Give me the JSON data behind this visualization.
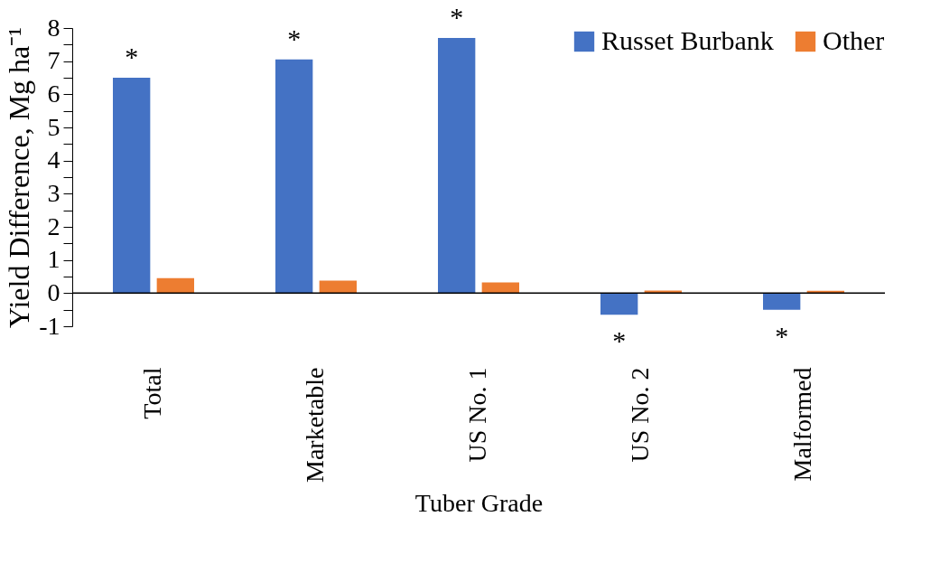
{
  "chart_data": {
    "type": "bar",
    "xlabel": "Tuber Grade",
    "ylabel": "Yield Difference, Mg ha⁻¹",
    "categories": [
      "Total",
      "Marketable",
      "US No. 1",
      "US No. 2",
      "Malformed"
    ],
    "series": [
      {
        "name": "Russet Burbank",
        "color": "#4472c4",
        "values": [
          6.5,
          7.05,
          7.7,
          -0.65,
          -0.5
        ]
      },
      {
        "name": "Other",
        "color": "#ed7d31",
        "values": [
          0.45,
          0.38,
          0.32,
          0.08,
          0.07
        ]
      }
    ],
    "ylim": [
      -1,
      8
    ],
    "yticks": [
      -1,
      {
        "value": -0.5,
        "label": null
      },
      0,
      {
        "value": 0.5,
        "label": null
      },
      1,
      {
        "value": 1.5,
        "label": null
      },
      2,
      {
        "value": 2.5,
        "label": null
      },
      3,
      {
        "value": 3.5,
        "label": null
      },
      4,
      {
        "value": 4.5,
        "label": null
      },
      5,
      {
        "value": 5.5,
        "label": null
      },
      6,
      {
        "value": 6.5,
        "label": null
      },
      7,
      {
        "value": 7.5,
        "label": null
      },
      8
    ],
    "annotations": [
      {
        "text": "*",
        "x": "Total",
        "y": 6.5
      },
      {
        "text": "*",
        "x": "Marketable",
        "y": 7.05
      },
      {
        "text": "*",
        "x": "US No. 1",
        "y": 7.7
      },
      {
        "text": "*",
        "x": "US No. 2",
        "y": -0.65
      },
      {
        "text": "*",
        "x": "Malformed",
        "y": -0.5
      }
    ],
    "ref_lines": [
      {
        "axis": "y",
        "value": 0,
        "color": "#000000"
      }
    ],
    "legend": "top right",
    "grid": false
  }
}
